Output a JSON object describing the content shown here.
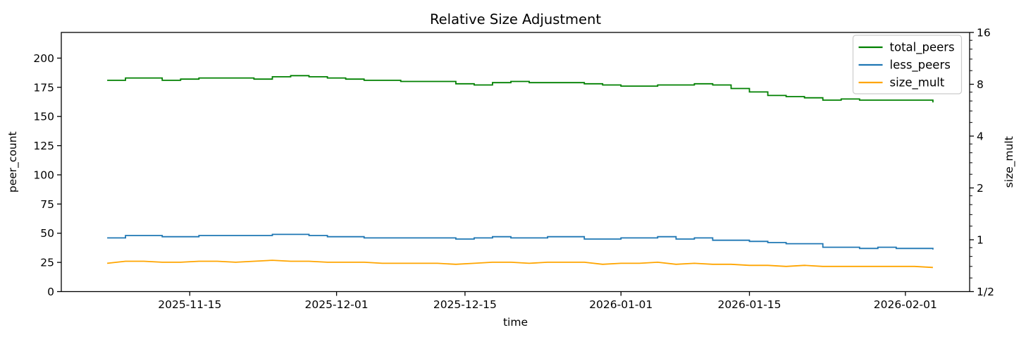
{
  "figure": {
    "background": "#ffffff",
    "axis_color": "#000000",
    "legend_border_color": "#cccccc",
    "legend_background": "#ffffff"
  },
  "chart_data": {
    "type": "line",
    "title": "Relative Size Adjustment",
    "xlabel": "time",
    "ylabel_left": "peer_count",
    "ylabel_right": "size_mult",
    "legend_position": "upper right",
    "grid": false,
    "x_axis": {
      "tick_labels": [
        "2025-11-15",
        "2025-12-01",
        "2025-12-15",
        "2026-01-01",
        "2026-01-15",
        "2026-02-01"
      ],
      "visible_range": [
        "2025-11-01",
        "2026-02-08"
      ],
      "data_range": [
        "2025-11-06",
        "2026-02-04"
      ]
    },
    "left_axis": {
      "label": "peer_count",
      "scale": "linear",
      "ticks": [
        0,
        25,
        50,
        75,
        100,
        125,
        150,
        175,
        200
      ],
      "range": [
        0,
        222
      ]
    },
    "right_axis": {
      "label": "size_mult",
      "scale": "log2",
      "tick_labels": [
        "1/2",
        "1",
        "2",
        "4",
        "8",
        "16"
      ],
      "tick_values": [
        0.5,
        1,
        2,
        4,
        8,
        16
      ],
      "minor_tick_multiples": [
        1.2,
        1.4,
        1.6,
        1.8
      ],
      "range": [
        0.5,
        16
      ]
    },
    "x_dates": [
      "2025-11-06",
      "2025-11-08",
      "2025-11-10",
      "2025-11-12",
      "2025-11-14",
      "2025-11-16",
      "2025-11-18",
      "2025-11-20",
      "2025-11-22",
      "2025-11-24",
      "2025-11-26",
      "2025-11-28",
      "2025-11-30",
      "2025-12-02",
      "2025-12-04",
      "2025-12-06",
      "2025-12-08",
      "2025-12-10",
      "2025-12-12",
      "2025-12-14",
      "2025-12-16",
      "2025-12-18",
      "2025-12-20",
      "2025-12-22",
      "2025-12-24",
      "2025-12-26",
      "2025-12-28",
      "2025-12-30",
      "2026-01-01",
      "2026-01-03",
      "2026-01-05",
      "2026-01-07",
      "2026-01-09",
      "2026-01-11",
      "2026-01-13",
      "2026-01-15",
      "2026-01-17",
      "2026-01-19",
      "2026-01-21",
      "2026-01-23",
      "2026-01-25",
      "2026-01-27",
      "2026-01-29",
      "2026-01-31",
      "2026-02-02",
      "2026-02-04"
    ],
    "series": [
      {
        "name": "total_peers",
        "axis": "left",
        "color": "#008000",
        "style": "step",
        "values": [
          181,
          183,
          183,
          181,
          182,
          183,
          183,
          183,
          182,
          184,
          185,
          184,
          183,
          182,
          181,
          181,
          180,
          180,
          180,
          178,
          177,
          179,
          180,
          179,
          179,
          179,
          178,
          177,
          176,
          176,
          177,
          177,
          178,
          177,
          174,
          171,
          168,
          167,
          166,
          164,
          165,
          164,
          164,
          164,
          164,
          162
        ]
      },
      {
        "name": "less_peers",
        "axis": "left",
        "color": "#1f77b4",
        "style": "step",
        "values": [
          46,
          48,
          48,
          47,
          47,
          48,
          48,
          48,
          48,
          49,
          49,
          48,
          47,
          47,
          46,
          46,
          46,
          46,
          46,
          45,
          46,
          47,
          46,
          46,
          47,
          47,
          45,
          45,
          46,
          46,
          47,
          45,
          46,
          44,
          44,
          43,
          42,
          41,
          41,
          38,
          38,
          37,
          38,
          37,
          37,
          36
        ]
      },
      {
        "name": "size_mult",
        "axis": "right",
        "color": "#ffa500",
        "style": "line",
        "values": [
          0.73,
          0.75,
          0.75,
          0.74,
          0.74,
          0.75,
          0.75,
          0.74,
          0.75,
          0.76,
          0.75,
          0.75,
          0.74,
          0.74,
          0.74,
          0.73,
          0.73,
          0.73,
          0.73,
          0.72,
          0.73,
          0.74,
          0.74,
          0.73,
          0.74,
          0.74,
          0.74,
          0.72,
          0.73,
          0.73,
          0.74,
          0.72,
          0.73,
          0.72,
          0.72,
          0.71,
          0.71,
          0.7,
          0.71,
          0.7,
          0.7,
          0.7,
          0.7,
          0.7,
          0.7,
          0.69
        ]
      }
    ]
  }
}
